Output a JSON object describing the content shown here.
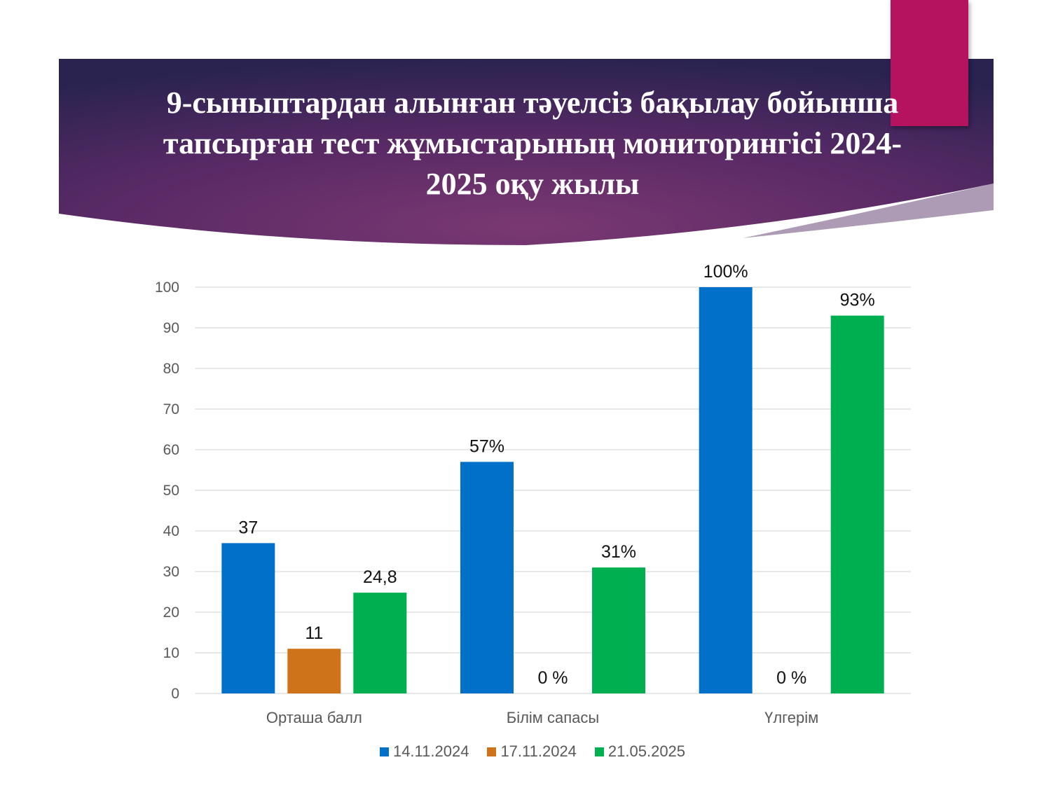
{
  "title": "9-сыныптардан алынған тәуелсіз бақылау бойынша тапсырған тест жұмыстарының мониторингісі 2024-2025 оқу жылы",
  "colors": {
    "banner_dark": "#2a2350",
    "banner_mid": "#5a2a66",
    "banner_light": "#7a3872",
    "accent": "#b5135f"
  },
  "chart_data": {
    "type": "bar",
    "categories": [
      "Орташа балл",
      "Білім сапасы",
      "Үлгерім"
    ],
    "series": [
      {
        "name": "14.11.2024",
        "color": "#0070c8",
        "values": [
          37,
          57,
          100
        ],
        "labels": [
          "37",
          "57%",
          "100%"
        ]
      },
      {
        "name": "17.11.2024",
        "color": "#cf731a",
        "values": [
          11,
          0,
          0
        ],
        "labels": [
          "11",
          "0 %",
          "0 %"
        ]
      },
      {
        "name": "21.05.2025",
        "color": "#00b050",
        "values": [
          24.8,
          31,
          93
        ],
        "labels": [
          "24,8",
          "31%",
          "93%"
        ]
      }
    ],
    "ylim": [
      0,
      100
    ],
    "yticks": [
      0,
      10,
      20,
      30,
      40,
      50,
      60,
      70,
      80,
      90,
      100
    ],
    "grid": true,
    "legend_position": "bottom"
  }
}
